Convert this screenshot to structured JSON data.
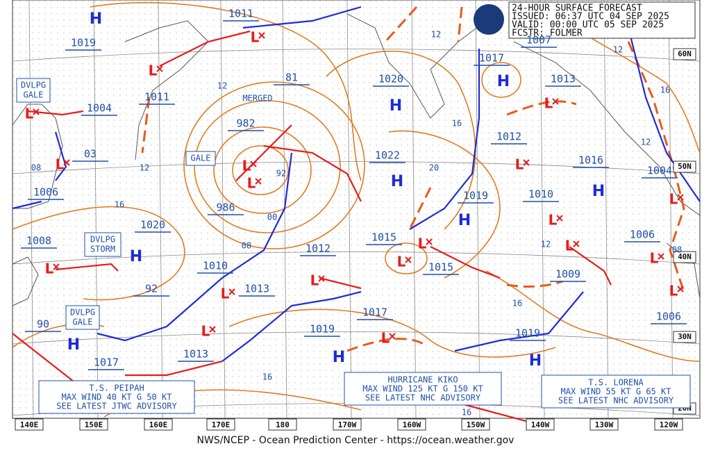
{
  "header": {
    "title": "24-HOUR SURFACE FORECAST",
    "issued": "ISSUED: 06:37 UTC 04 SEP 2025",
    "valid": "VALID:  00:00 UTC 05 SEP 2025",
    "forecaster": "FCSTR:  FOLMER"
  },
  "footer": "NWS/NCEP - Ocean Prediction Center - https://ocean.weather.gov",
  "longitude_labels": [
    "140E",
    "150E",
    "160E",
    "170E",
    "180",
    "170W",
    "160W",
    "150W",
    "140W",
    "130W",
    "120W"
  ],
  "latitude_labels": [
    "60N",
    "50N",
    "40N",
    "30N",
    "20N"
  ],
  "merged_label": "MERGED",
  "warning_boxes": [
    {
      "lines": [
        "DVLPG",
        "GALE"
      ]
    },
    {
      "lines": [
        "GALE"
      ]
    },
    {
      "lines": [
        "DVLPG",
        "STORM"
      ]
    },
    {
      "lines": [
        "DVLPG",
        "GALE"
      ]
    }
  ],
  "advisories": [
    {
      "lines": [
        "T.S. PEIPAH",
        "MAX WIND 40 KT G 50 KT",
        "SEE LATEST JTWC ADVISORY"
      ]
    },
    {
      "lines": [
        "HURRICANE KIKO",
        "MAX WIND 125 KT G 150 KT",
        "SEE LATEST NHC ADVISORY"
      ]
    },
    {
      "lines": [
        "T.S. LORENA",
        "MAX WIND 55 KT G 65 KT",
        "SEE LATEST NHC ADVISORY"
      ]
    }
  ],
  "pressure_labels": [
    "1019",
    "1011",
    "1011",
    "1004",
    "03",
    "1006",
    "1020",
    "1008",
    "92",
    "90",
    "1017",
    "982",
    "986",
    "81",
    "1010",
    "1013",
    "1013",
    "1012",
    "1020",
    "1022",
    "1015",
    "1015",
    "1017",
    "1019",
    "1017",
    "1007",
    "1013",
    "1012",
    "1016",
    "1010",
    "1019",
    "1009",
    "1006",
    "1004",
    "1006",
    "1019"
  ],
  "isobar_labels": [
    "12",
    "12",
    "12",
    "16",
    "08",
    "92",
    "00",
    "08",
    "16",
    "20",
    "12",
    "16",
    "12",
    "12",
    "16",
    "08",
    "16",
    "16"
  ],
  "highs": [
    "H",
    "H",
    "H",
    "H",
    "H",
    "H",
    "H",
    "H",
    "H",
    "H"
  ],
  "lows": [
    "L",
    "L",
    "L",
    "L",
    "L",
    "L",
    "L",
    "L",
    "L",
    "L",
    "L",
    "L",
    "L",
    "L",
    "L",
    "L",
    "L",
    "L",
    "L",
    "L"
  ]
}
